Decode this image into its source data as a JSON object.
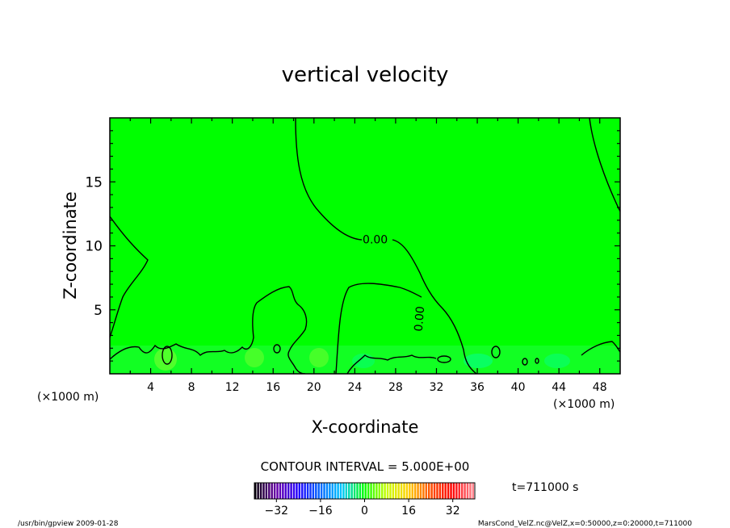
{
  "chart_data": {
    "type": "heatmap",
    "title": "vertical velocity",
    "xlabel": "X-coordinate",
    "ylabel": "Z-coordinate",
    "x_unit": "(×1000 m)",
    "xlim": [
      0,
      50
    ],
    "ylim": [
      0,
      20
    ],
    "x_ticks": [
      4,
      8,
      12,
      16,
      20,
      24,
      28,
      32,
      36,
      40,
      44,
      48
    ],
    "y_ticks": [
      5,
      10,
      15
    ],
    "fill_color": "#00ff00",
    "contour_labels": [
      {
        "text": "0.00",
        "x": 26.0,
        "y": 10.5,
        "rotate": 0
      },
      {
        "text": "0.00",
        "x": 30.3,
        "y": 4.3,
        "rotate": -85
      }
    ],
    "contour_interval_label": "CONTOUR INTERVAL = 5.000E+00",
    "colorbar": {
      "min": -40,
      "max": 40,
      "ticks": [
        -32,
        -16,
        0,
        16,
        32
      ],
      "colors": [
        "#000000",
        "#6a00a8",
        "#2200ff",
        "#0066ff",
        "#00c8ff",
        "#00ff00",
        "#c8ff00",
        "#ffd000",
        "#ff5000",
        "#ff0000",
        "#ff8c96"
      ]
    },
    "time_label": "t=711000 s",
    "footer_left": "/usr/bin/gpview   2009-01-28",
    "footer_right": "MarsCond_VelZ.nc@VelZ,x=0:50000,z=0:20000,t=711000"
  }
}
